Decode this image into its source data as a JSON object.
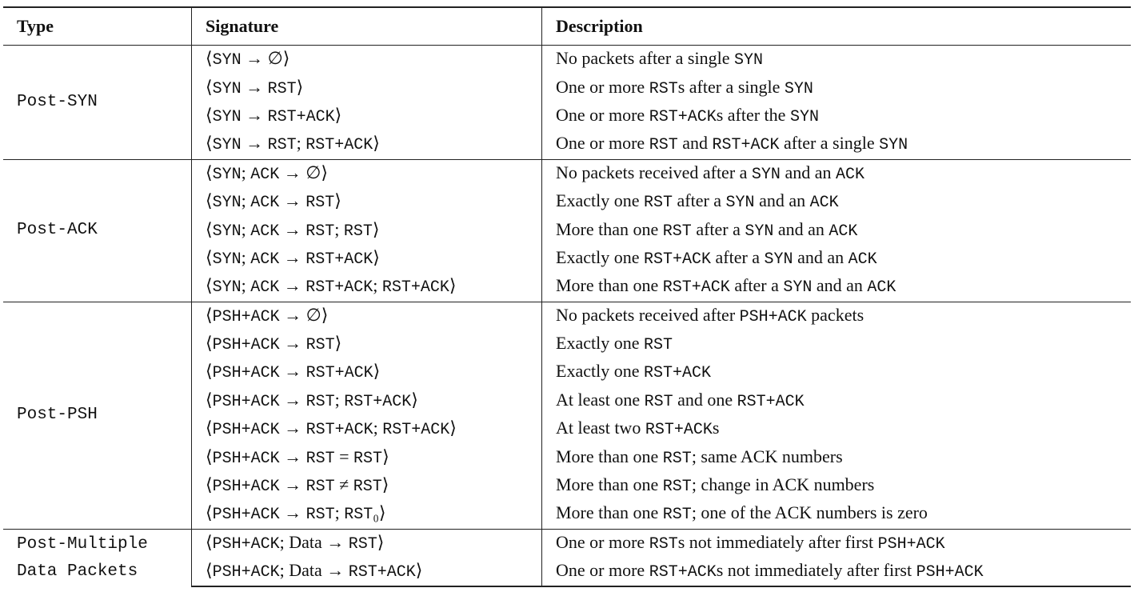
{
  "header": [
    "Type",
    "Signature",
    "Description"
  ],
  "groups": [
    {
      "type": "Post-SYN",
      "rows": [
        {
          "signature": "⟨SYN → ∅⟩",
          "description": "No packets after a single SYN"
        },
        {
          "signature": "⟨SYN → RST⟩",
          "description": "One or more RSTs after a single SYN"
        },
        {
          "signature": "⟨SYN → RST+ACK⟩",
          "description": "One or more RST+ACKs after the SYN"
        },
        {
          "signature": "⟨SYN → RST; RST+ACK⟩",
          "description": "One or more RST and RST+ACK after a single SYN"
        }
      ]
    },
    {
      "type": "Post-ACK",
      "rows": [
        {
          "signature": "⟨SYN; ACK → ∅⟩",
          "description": "No packets received after a SYN and an ACK"
        },
        {
          "signature": "⟨SYN; ACK → RST⟩",
          "description": "Exactly one RST after a SYN and an ACK"
        },
        {
          "signature": "⟨SYN; ACK → RST; RST⟩",
          "description": "More than one RST after a SYN and an ACK"
        },
        {
          "signature": "⟨SYN; ACK → RST+ACK⟩",
          "description": "Exactly one RST+ACK after a SYN and an ACK"
        },
        {
          "signature": "⟨SYN; ACK → RST+ACK; RST+ACK⟩",
          "description": "More than one RST+ACK after a SYN and an ACK"
        }
      ]
    },
    {
      "type": "Post-PSH",
      "rows": [
        {
          "signature": "⟨PSH+ACK → ∅⟩",
          "description": "No packets received after PSH+ACK packets"
        },
        {
          "signature": "⟨PSH+ACK → RST⟩",
          "description": "Exactly one RST"
        },
        {
          "signature": "⟨PSH+ACK → RST+ACK⟩",
          "description": "Exactly one RST+ACK"
        },
        {
          "signature": "⟨PSH+ACK → RST; RST+ACK⟩",
          "description": "At least one RST and one RST+ACK"
        },
        {
          "signature": "⟨PSH+ACK → RST+ACK; RST+ACK⟩",
          "description": "At least two RST+ACKs"
        },
        {
          "signature": "⟨PSH+ACK → RST = RST⟩",
          "description": "More than one RST; same ACK numbers"
        },
        {
          "signature": "⟨PSH+ACK → RST ≠ RST⟩",
          "description": "More than one RST; change in ACK numbers"
        },
        {
          "signature": "⟨PSH+ACK → RST; RST₀⟩",
          "description": "More than one RST; one of the ACK numbers is zero"
        }
      ]
    },
    {
      "type": "Post-Multiple\nData Packets",
      "rows": [
        {
          "signature": "⟨PSH+ACK; Data → RST⟩",
          "description": "One or more RSTs not immediately after first PSH+ACK"
        },
        {
          "signature": "⟨PSH+ACK; Data → RST+ACK⟩",
          "description": "One or more RST+ACKs not immediately after first PSH+ACK"
        }
      ]
    }
  ]
}
